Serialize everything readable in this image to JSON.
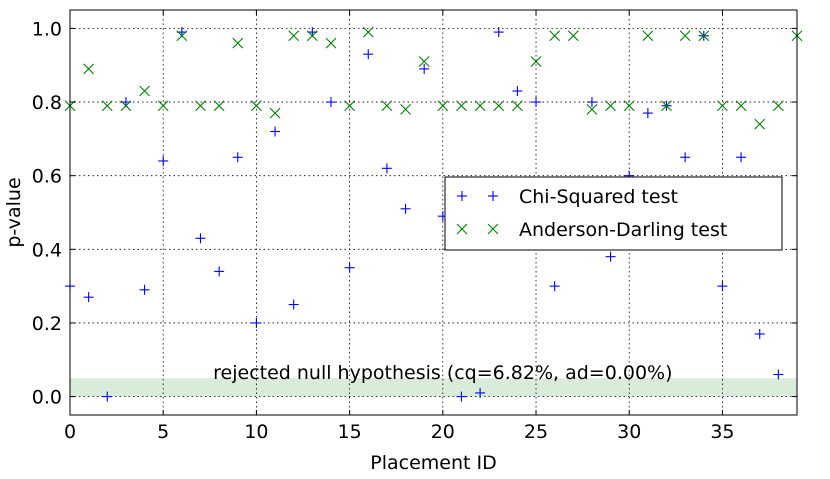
{
  "chart_data": {
    "type": "scatter",
    "title": "",
    "xlabel": "Placement ID",
    "ylabel": "p-value",
    "xlim": [
      0,
      39
    ],
    "ylim": [
      -0.05,
      1.05
    ],
    "xticks": [
      0,
      5,
      10,
      15,
      20,
      25,
      30,
      35
    ],
    "xtick_labels": [
      "0",
      "5",
      "10",
      "15",
      "20",
      "25",
      "30",
      "35"
    ],
    "yticks": [
      0.0,
      0.2,
      0.4,
      0.6,
      0.8,
      1.0
    ],
    "ytick_labels": [
      "0.0",
      "0.2",
      "0.4",
      "0.6",
      "0.8",
      "1.0"
    ],
    "grid": true,
    "legend_position": "center-right",
    "series": [
      {
        "name": "Chi-Squared test",
        "marker": "+",
        "color": "#0000ff",
        "points": [
          [
            0,
            0.3
          ],
          [
            1,
            0.27
          ],
          [
            2,
            0.0
          ],
          [
            3,
            0.8
          ],
          [
            4,
            0.29
          ],
          [
            5,
            0.64
          ],
          [
            6,
            0.99
          ],
          [
            7,
            0.43
          ],
          [
            8,
            0.34
          ],
          [
            9,
            0.65
          ],
          [
            10,
            0.2
          ],
          [
            11,
            0.72
          ],
          [
            12,
            0.25
          ],
          [
            13,
            0.99
          ],
          [
            14,
            0.8
          ],
          [
            15,
            0.35
          ],
          [
            16,
            0.93
          ],
          [
            17,
            0.62
          ],
          [
            18,
            0.51
          ],
          [
            19,
            0.89
          ],
          [
            20,
            0.49
          ],
          [
            21,
            0.0
          ],
          [
            22,
            0.01
          ],
          [
            23,
            0.99
          ],
          [
            24,
            0.83
          ],
          [
            25,
            0.8
          ],
          [
            26,
            0.3
          ],
          [
            28,
            0.8
          ],
          [
            29,
            0.38
          ],
          [
            30,
            0.6
          ],
          [
            31,
            0.77
          ],
          [
            32,
            0.79
          ],
          [
            33,
            0.65
          ],
          [
            34,
            0.98
          ],
          [
            35,
            0.3
          ],
          [
            36,
            0.65
          ],
          [
            37,
            0.17
          ],
          [
            38,
            0.06
          ]
        ]
      },
      {
        "name": "Anderson-Darling test",
        "marker": "x",
        "color": "#008000",
        "points": [
          [
            0,
            0.79
          ],
          [
            1,
            0.89
          ],
          [
            2,
            0.79
          ],
          [
            3,
            0.79
          ],
          [
            4,
            0.83
          ],
          [
            5,
            0.79
          ],
          [
            6,
            0.98
          ],
          [
            7,
            0.79
          ],
          [
            8,
            0.79
          ],
          [
            9,
            0.96
          ],
          [
            10,
            0.79
          ],
          [
            11,
            0.77
          ],
          [
            12,
            0.98
          ],
          [
            13,
            0.98
          ],
          [
            14,
            0.96
          ],
          [
            15,
            0.79
          ],
          [
            16,
            0.99
          ],
          [
            17,
            0.79
          ],
          [
            18,
            0.78
          ],
          [
            19,
            0.91
          ],
          [
            20,
            0.79
          ],
          [
            21,
            0.79
          ],
          [
            22,
            0.79
          ],
          [
            23,
            0.79
          ],
          [
            24,
            0.79
          ],
          [
            25,
            0.91
          ],
          [
            26,
            0.98
          ],
          [
            27,
            0.98
          ],
          [
            28,
            0.78
          ],
          [
            29,
            0.79
          ],
          [
            30,
            0.79
          ],
          [
            31,
            0.98
          ],
          [
            32,
            0.79
          ],
          [
            33,
            0.98
          ],
          [
            34,
            0.98
          ],
          [
            35,
            0.79
          ],
          [
            36,
            0.79
          ],
          [
            37,
            0.74
          ],
          [
            38,
            0.79
          ],
          [
            39,
            0.98
          ]
        ]
      }
    ],
    "band": {
      "y_from": 0.0,
      "y_to": 0.05,
      "color": "#d9ecd9",
      "label": "rejected null hypothesis (cq=6.82%, ad=0.00%)"
    }
  }
}
